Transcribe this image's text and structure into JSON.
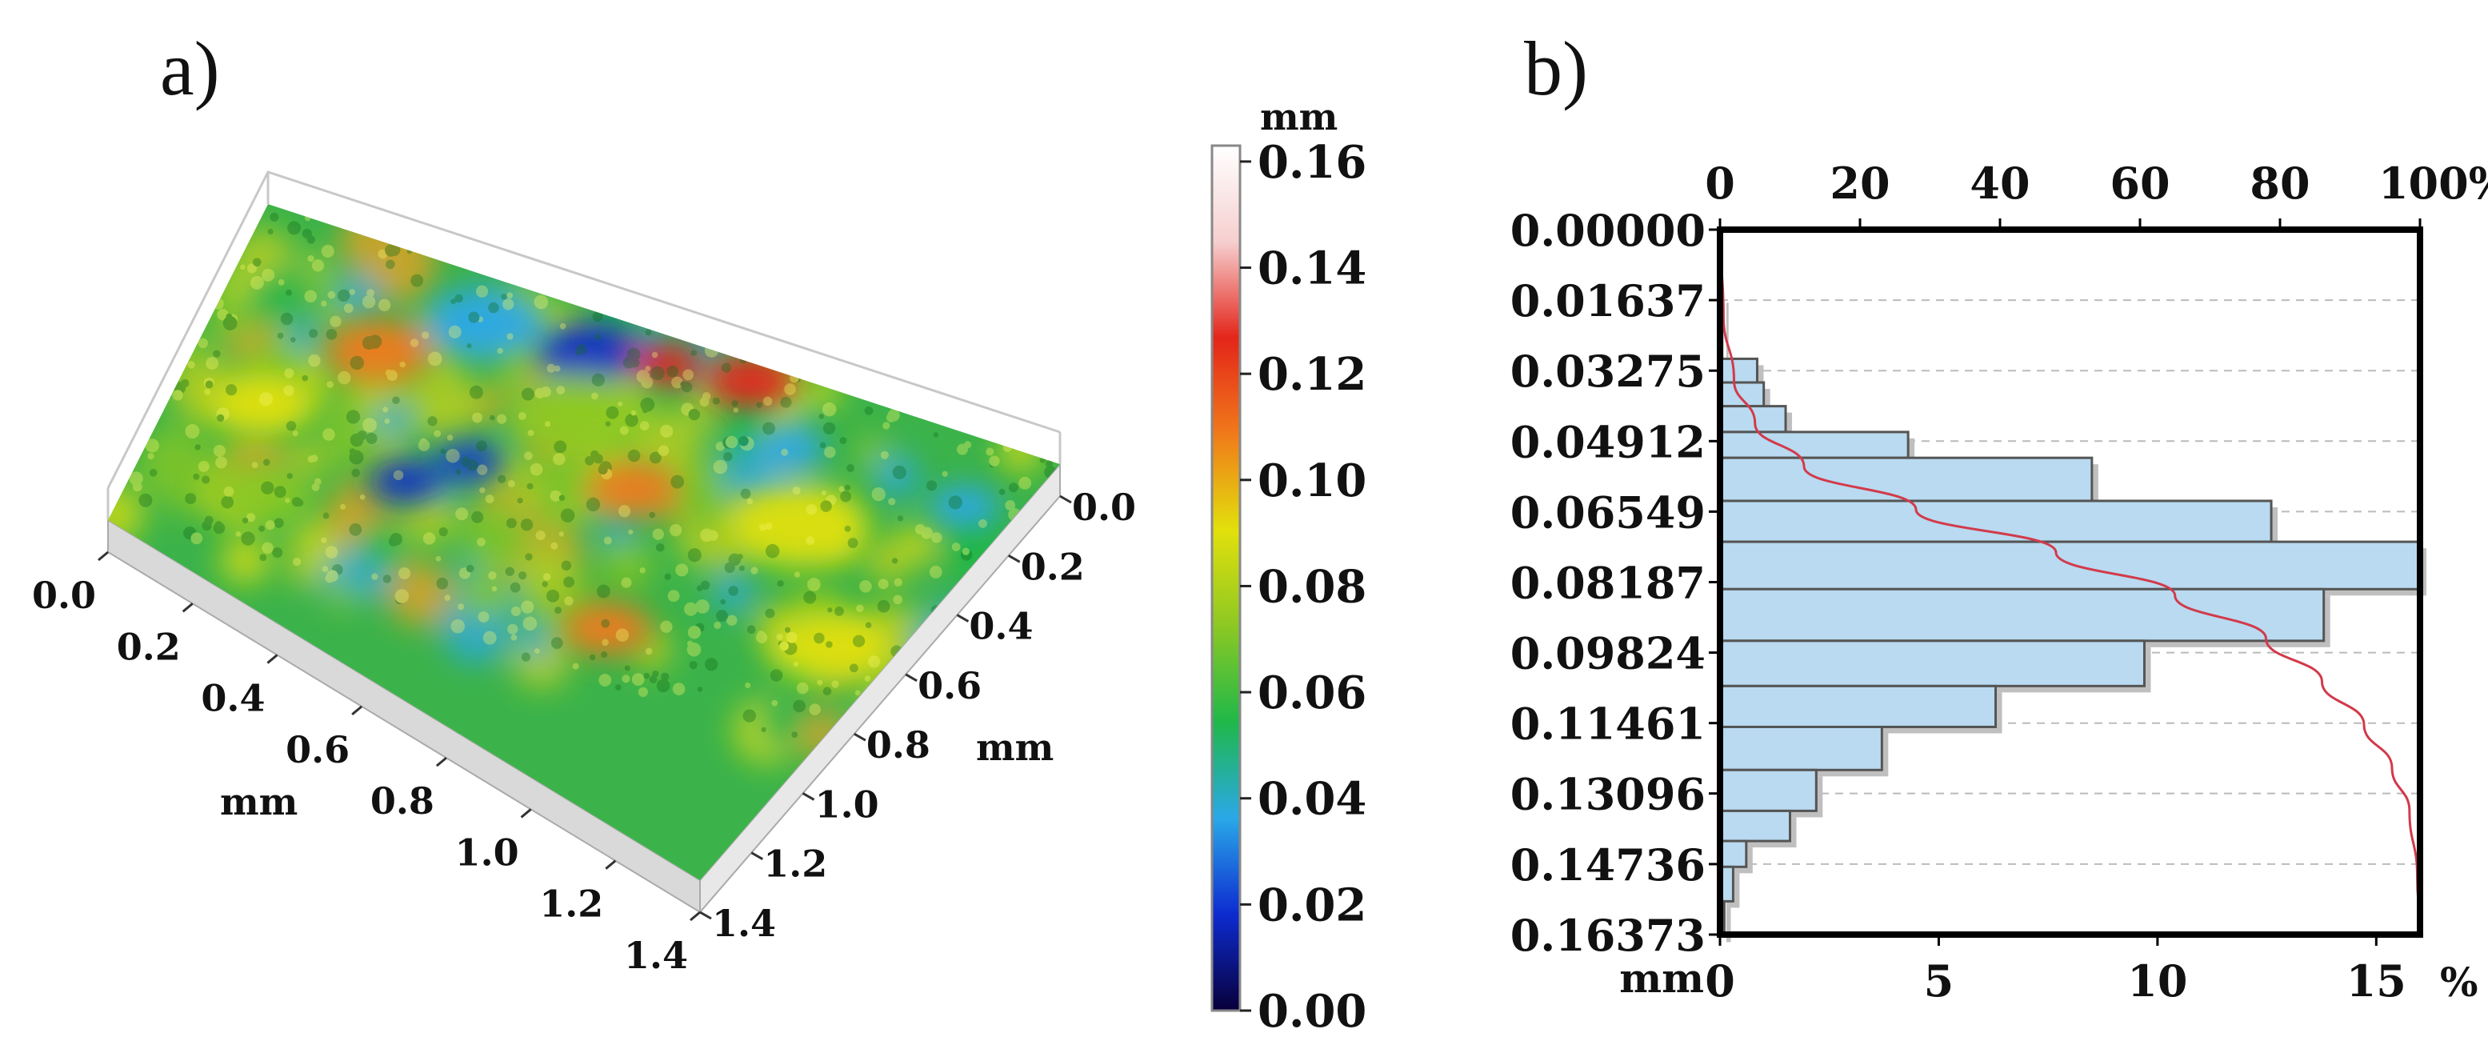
{
  "panel_a": {
    "label": "a)"
  },
  "panel_b": {
    "label": "b)"
  },
  "chart_data": [
    {
      "type": "surface3d",
      "panel": "a",
      "x_axis": {
        "label": "mm",
        "ticks": [
          "0.0",
          "0.2",
          "0.4",
          "0.6",
          "0.8",
          "1.0",
          "1.2",
          "1.4"
        ]
      },
      "y_axis": {
        "label": "mm",
        "ticks": [
          "0.0",
          "0.2",
          "0.4",
          "0.6",
          "0.8",
          "1.0",
          "1.2",
          "1.4"
        ]
      },
      "colorbar": {
        "unit": "mm",
        "ticks": [
          "0.00",
          "0.02",
          "0.04",
          "0.06",
          "0.08",
          "0.10",
          "0.12",
          "0.14",
          "0.16"
        ],
        "range": [
          0.0,
          0.163
        ],
        "stops": [
          "#08003a",
          "#0d2bd0",
          "#2aa8e8",
          "#1fb84a",
          "#8cc823",
          "#e2e00c",
          "#f07a1a",
          "#e4251a",
          "#f6cfcf",
          "#ffffff"
        ]
      },
      "surface": {
        "base_color": "#3cb34a",
        "blobs": [
          {
            "u": 0.43,
            "v": 0.12,
            "color": "#0d2bc8",
            "r": 0.06
          },
          {
            "u": 0.3,
            "v": 0.13,
            "color": "#2aa8e8",
            "r": 0.07
          },
          {
            "u": 0.62,
            "v": 0.05,
            "color": "#e4251a",
            "r": 0.05
          },
          {
            "u": 0.52,
            "v": 0.08,
            "color": "#e4251a",
            "r": 0.04
          },
          {
            "u": 0.36,
            "v": 0.52,
            "color": "#1f3fc8",
            "r": 0.04
          },
          {
            "u": 0.3,
            "v": 0.63,
            "color": "#0d2bc8",
            "r": 0.04
          },
          {
            "u": 0.2,
            "v": 0.3,
            "color": "#f07a1a",
            "r": 0.06
          },
          {
            "u": 0.55,
            "v": 0.45,
            "color": "#f07a1a",
            "r": 0.05
          },
          {
            "u": 0.75,
            "v": 0.4,
            "color": "#e2e00c",
            "r": 0.08
          },
          {
            "u": 0.6,
            "v": 0.85,
            "color": "#f07a1a",
            "r": 0.05
          },
          {
            "u": 0.1,
            "v": 0.55,
            "color": "#e2e00c",
            "r": 0.06
          },
          {
            "u": 0.85,
            "v": 0.7,
            "color": "#e2e00c",
            "r": 0.07
          },
          {
            "u": 0.45,
            "v": 0.3,
            "color": "#8cc823",
            "r": 0.08
          },
          {
            "u": 0.7,
            "v": 0.2,
            "color": "#2aa8e8",
            "r": 0.04
          },
          {
            "u": 0.15,
            "v": 0.8,
            "color": "#8cc823",
            "r": 0.06
          },
          {
            "u": 0.92,
            "v": 0.2,
            "color": "#2aa8e8",
            "r": 0.04
          }
        ]
      }
    },
    {
      "type": "histogram",
      "panel": "b",
      "orientation": "horizontal",
      "y_axis": {
        "label": "mm",
        "ticks": [
          "0.00000",
          "0.01637",
          "0.03275",
          "0.04912",
          "0.06549",
          "0.08187",
          "0.09824",
          "0.11461",
          "0.13096",
          "0.14736",
          "0.16373"
        ],
        "range": [
          0.0,
          0.16373
        ]
      },
      "x_axis_bottom": {
        "unit": "%",
        "ticks": [
          "0",
          "5",
          "10",
          "15"
        ],
        "range": [
          0,
          16
        ]
      },
      "x_axis_top": {
        "unit": "%",
        "ticks": [
          "0",
          "20",
          "40",
          "60",
          "80",
          "100%"
        ],
        "range": [
          0,
          100
        ]
      },
      "bins": [
        {
          "from": 0.0,
          "to": 0.0155,
          "value": 0.0
        },
        {
          "from": 0.0155,
          "to": 0.03,
          "value": 0.05
        },
        {
          "from": 0.03,
          "to": 0.0355,
          "value": 0.85
        },
        {
          "from": 0.0355,
          "to": 0.041,
          "value": 1.0
        },
        {
          "from": 0.041,
          "to": 0.047,
          "value": 1.5
        },
        {
          "from": 0.047,
          "to": 0.053,
          "value": 4.3
        },
        {
          "from": 0.053,
          "to": 0.063,
          "value": 8.5
        },
        {
          "from": 0.063,
          "to": 0.0725,
          "value": 12.6
        },
        {
          "from": 0.0725,
          "to": 0.0835,
          "value": 16.0
        },
        {
          "from": 0.0835,
          "to": 0.0955,
          "value": 13.8
        },
        {
          "from": 0.0955,
          "to": 0.106,
          "value": 9.7
        },
        {
          "from": 0.106,
          "to": 0.1155,
          "value": 6.3
        },
        {
          "from": 0.1155,
          "to": 0.1255,
          "value": 3.7
        },
        {
          "from": 0.1255,
          "to": 0.135,
          "value": 2.2
        },
        {
          "from": 0.135,
          "to": 0.142,
          "value": 1.6
        },
        {
          "from": 0.142,
          "to": 0.148,
          "value": 0.6
        },
        {
          "from": 0.148,
          "to": 0.156,
          "value": 0.3
        },
        {
          "from": 0.156,
          "to": 0.164,
          "value": 0.1
        }
      ],
      "cumulative": {
        "color": "#d23a4a",
        "points": [
          [
            0.0,
            0
          ],
          [
            0.02,
            0.5
          ],
          [
            0.035,
            2
          ],
          [
            0.045,
            5
          ],
          [
            0.055,
            12
          ],
          [
            0.065,
            28
          ],
          [
            0.075,
            48
          ],
          [
            0.085,
            65
          ],
          [
            0.095,
            78
          ],
          [
            0.105,
            86
          ],
          [
            0.115,
            92
          ],
          [
            0.125,
            96
          ],
          [
            0.135,
            98.5
          ],
          [
            0.15,
            99.6
          ],
          [
            0.1637,
            100
          ]
        ]
      },
      "colors": {
        "bar_fill": "#b9daf0",
        "bar_stroke": "#555555",
        "bar_shadow": "#bfbfbf",
        "grid": "#bbbbbb"
      }
    }
  ]
}
